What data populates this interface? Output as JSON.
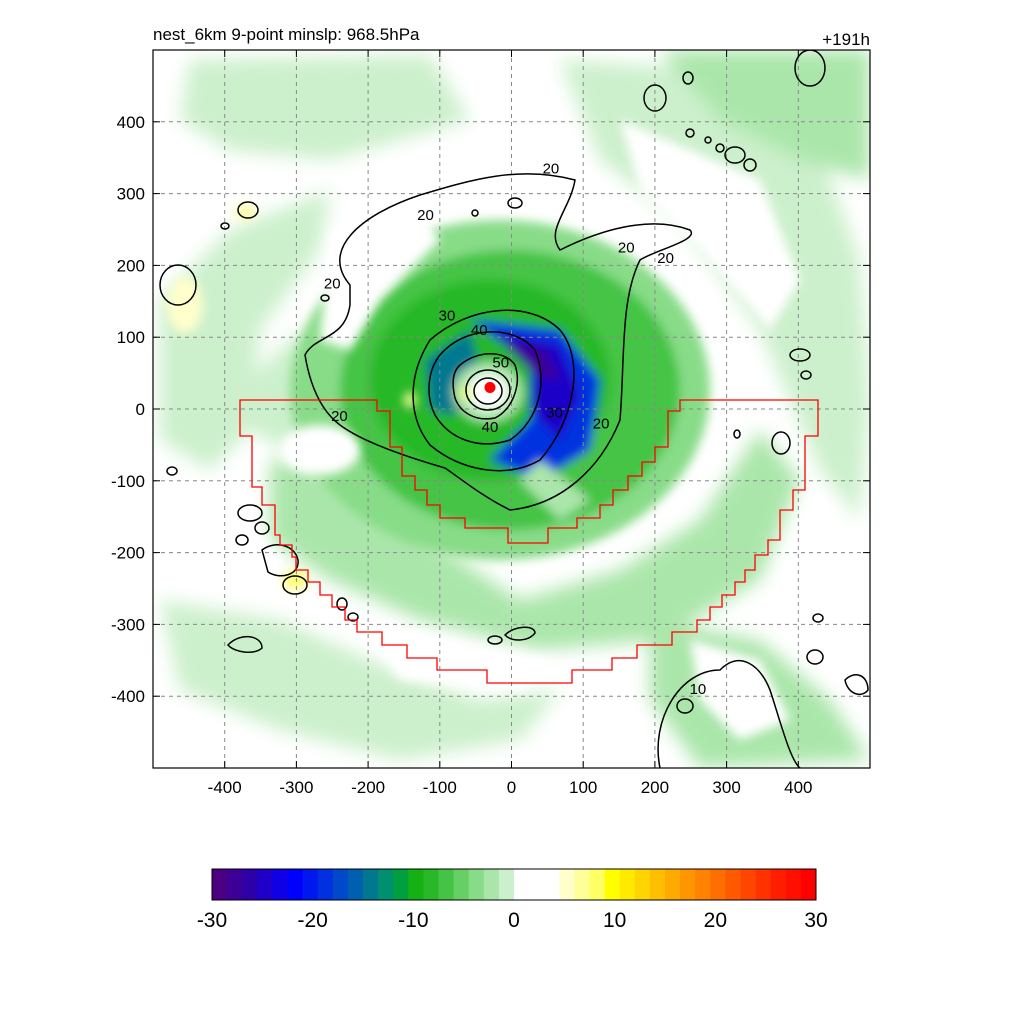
{
  "chart_data": {
    "type": "heatmap",
    "title_left": "nest_6km  9-point minslp: 968.5hPa",
    "title_right": "+191h",
    "xlabel": "",
    "ylabel": "",
    "xlim": [
      -500,
      500
    ],
    "ylim": [
      -500,
      500
    ],
    "x_ticks": [
      -400,
      -300,
      -200,
      -100,
      0,
      100,
      200,
      300,
      400
    ],
    "y_ticks": [
      400,
      300,
      200,
      100,
      0,
      -100,
      -200,
      -300,
      -400
    ],
    "grid": true,
    "colorbar": {
      "min": -30,
      "max": 30,
      "ticks": [
        -30,
        -20,
        -10,
        0,
        10,
        20,
        30
      ],
      "colors": [
        "#4b0082",
        "#3c0096",
        "#2d00aa",
        "#1e00c8",
        "#0f00e6",
        "#0000ff",
        "#0018f0",
        "#0030e0",
        "#0048cc",
        "#0060b0",
        "#007890",
        "#009070",
        "#00a040",
        "#14b014",
        "#28b828",
        "#44c444",
        "#66d066",
        "#88dc88",
        "#aae6aa",
        "#ccf0cc",
        "#ffffff",
        "#ffffff",
        "#ffffff",
        "#ffffcc",
        "#ffff99",
        "#ffff66",
        "#ffff00",
        "#ffea00",
        "#ffd400",
        "#ffbf00",
        "#ffaa00",
        "#ff9600",
        "#ff8200",
        "#ff6e00",
        "#ff5a00",
        "#ff4600",
        "#ff3200",
        "#ff1e00",
        "#ff0f00",
        "#ff0000"
      ]
    },
    "contour_labels": [
      {
        "text": "20",
        "x": 55,
        "y": 335
      },
      {
        "text": "20",
        "x": -120,
        "y": 270
      },
      {
        "text": "20",
        "x": 160,
        "y": 225
      },
      {
        "text": "20",
        "x": 215,
        "y": 210
      },
      {
        "text": "20",
        "x": -250,
        "y": 175
      },
      {
        "text": "20",
        "x": -240,
        "y": -10
      },
      {
        "text": "20",
        "x": 125,
        "y": -20
      },
      {
        "text": "30",
        "x": -90,
        "y": 130
      },
      {
        "text": "30",
        "x": 60,
        "y": -5
      },
      {
        "text": "40",
        "x": -45,
        "y": 110
      },
      {
        "text": "40",
        "x": -30,
        "y": -25
      },
      {
        "text": "50",
        "x": -15,
        "y": 65
      },
      {
        "text": "10",
        "x": 260,
        "y": -390
      }
    ],
    "storm_center": {
      "x": -30,
      "y": 30
    }
  }
}
